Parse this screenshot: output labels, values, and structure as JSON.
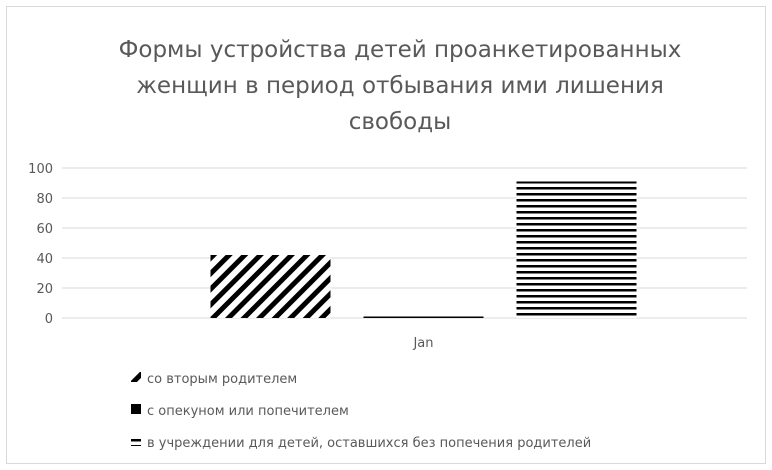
{
  "chart_data": {
    "type": "bar",
    "title": "Формы устройства детей проанкетированных женщин в период отбывания ими лишения свободы",
    "title_lines": [
      "Формы устройства детей проанкетированных",
      "женщин в период отбывания ими лишения",
      "свободы"
    ],
    "categories": [
      "Jan"
    ],
    "series": [
      {
        "name": "со вторым родителем",
        "values": [
          42
        ],
        "pattern": "diagonal-stripes"
      },
      {
        "name": "с опекуном или попечителем",
        "values": [
          1
        ],
        "pattern": "solid"
      },
      {
        "name": "в учреждении для детей, оставшихся без попечения родителей",
        "values": [
          91
        ],
        "pattern": "horizontal-stripes"
      }
    ],
    "xlabel": "",
    "ylabel": "",
    "ylim": [
      0,
      100
    ],
    "yticks": [
      0,
      20,
      40,
      60,
      80,
      100
    ],
    "grid": true,
    "legend_position": "bottom",
    "colors": {
      "bars": "#000000",
      "text": "#595959",
      "grid": "#d9d9d9"
    }
  }
}
